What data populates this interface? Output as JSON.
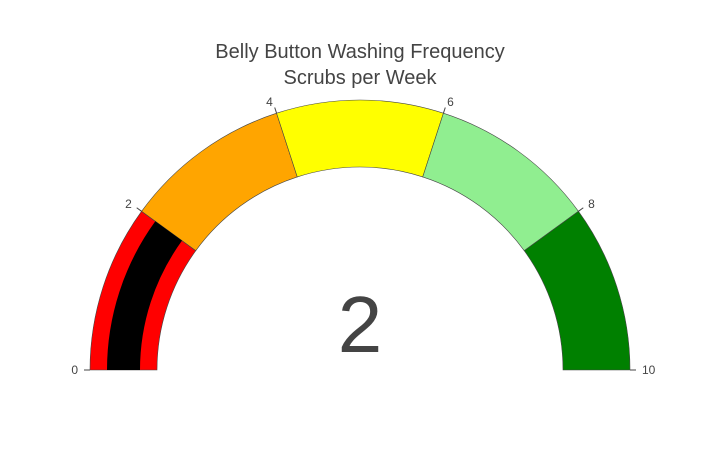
{
  "chart_data": {
    "type": "gauge",
    "title": "Belly Button Washing Frequency",
    "subtitle": "Scrubs per Week",
    "value": 2,
    "range": [
      0,
      10
    ],
    "ticks": [
      0,
      2,
      4,
      6,
      8,
      10
    ],
    "tick_labels": [
      "0",
      "2",
      "4",
      "6",
      "8",
      "10"
    ],
    "steps": [
      {
        "from": 0,
        "to": 2,
        "color": "#ff0000"
      },
      {
        "from": 2,
        "to": 4,
        "color": "#ffa500"
      },
      {
        "from": 4,
        "to": 6,
        "color": "#ffff00"
      },
      {
        "from": 6,
        "to": 8,
        "color": "#90ee90"
      },
      {
        "from": 8,
        "to": 10,
        "color": "#008000"
      }
    ],
    "bar_color": "#000000"
  }
}
